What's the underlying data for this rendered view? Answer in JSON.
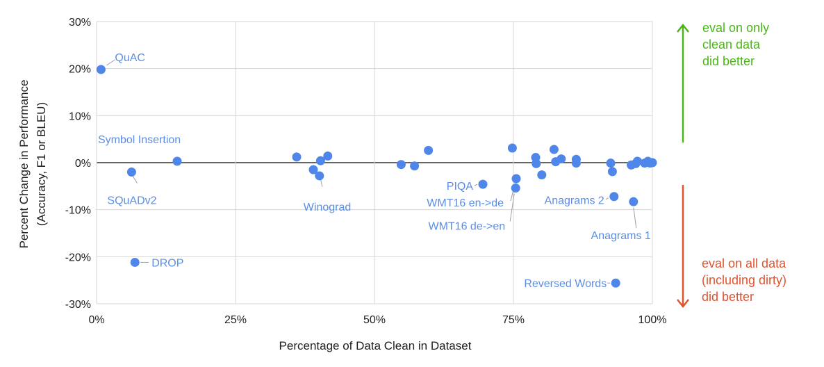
{
  "chart_data": {
    "type": "scatter",
    "xlabel": "Percentage of Data Clean in Dataset",
    "ylabel": [
      "Percent Change in Performance",
      "(Accuracy,  F1 or BLEU)"
    ],
    "xlim": [
      0,
      100
    ],
    "ylim": [
      -30,
      30
    ],
    "xticks": [
      0,
      25,
      50,
      75,
      100
    ],
    "xtick_labels": [
      "0%",
      "25%",
      "50%",
      "75%",
      "100%"
    ],
    "yticks": [
      30,
      20,
      10,
      0,
      -10,
      -20,
      -30
    ],
    "ytick_labels": [
      "30%",
      "20%",
      "10%",
      "0%",
      "-10%",
      "-20%",
      "-30%"
    ],
    "grid": true,
    "point_color": "#4f86ea",
    "label_color": "#5b8ee6",
    "leader_color": "#9e9e9e",
    "points": [
      {
        "x": 0.8,
        "y": 19.8,
        "label": "QuAC"
      },
      {
        "x": 14.5,
        "y": 0.3,
        "label": "Symbol Insertion"
      },
      {
        "x": 6.3,
        "y": -2.0,
        "label": "SQuADv2"
      },
      {
        "x": 6.9,
        "y": -21.2,
        "label": "DROP"
      },
      {
        "x": 40.1,
        "y": -2.8,
        "label": "Winograd"
      },
      {
        "x": 69.5,
        "y": -4.6,
        "label": "PIQA"
      },
      {
        "x": 75.5,
        "y": -3.4,
        "label": "WMT16 en->de"
      },
      {
        "x": 75.4,
        "y": -5.4,
        "label": "WMT16 de->en"
      },
      {
        "x": 93.1,
        "y": -7.2,
        "label": "Anagrams 2"
      },
      {
        "x": 96.6,
        "y": -8.3,
        "label": "Anagrams 1"
      },
      {
        "x": 93.4,
        "y": -25.6,
        "label": "Reversed Words"
      },
      {
        "x": 36.0,
        "y": 1.2
      },
      {
        "x": 39.0,
        "y": -1.5
      },
      {
        "x": 40.3,
        "y": 0.4
      },
      {
        "x": 41.6,
        "y": 1.4
      },
      {
        "x": 54.8,
        "y": -0.4
      },
      {
        "x": 57.2,
        "y": -0.7
      },
      {
        "x": 59.7,
        "y": 2.6
      },
      {
        "x": 74.8,
        "y": 3.1
      },
      {
        "x": 79.0,
        "y": 1.1
      },
      {
        "x": 79.1,
        "y": -0.2
      },
      {
        "x": 80.1,
        "y": -2.6
      },
      {
        "x": 82.3,
        "y": 2.8
      },
      {
        "x": 82.6,
        "y": 0.2
      },
      {
        "x": 83.6,
        "y": 0.8
      },
      {
        "x": 86.3,
        "y": 0.7
      },
      {
        "x": 86.3,
        "y": -0.1
      },
      {
        "x": 92.5,
        "y": -0.1
      },
      {
        "x": 92.8,
        "y": -1.9
      },
      {
        "x": 96.2,
        "y": -0.5
      },
      {
        "x": 97.0,
        "y": -0.2
      },
      {
        "x": 97.3,
        "y": 0.3
      },
      {
        "x": 98.6,
        "y": -0.1
      },
      {
        "x": 99.2,
        "y": 0.3
      },
      {
        "x": 99.6,
        "y": -0.1
      },
      {
        "x": 100.0,
        "y": 0.0
      }
    ]
  },
  "annotations": {
    "better_clean": {
      "lines": [
        "eval on only",
        "clean data",
        "did better"
      ],
      "color": "#4cb51a"
    },
    "better_all": {
      "lines": [
        "eval on all data",
        "(including dirty)",
        "did better"
      ],
      "color": "#e0532f"
    }
  }
}
